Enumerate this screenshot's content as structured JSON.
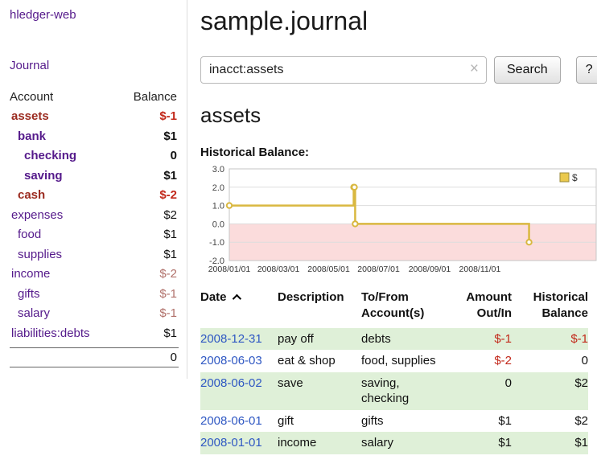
{
  "colors": {
    "link_purple": "#551a8b",
    "date_link_blue": "#2f58c3",
    "negative_red": "#c2281a",
    "muted_negative_red": "#b0706a",
    "negative_account_name": "#9b2b20",
    "row_highlight_green": "#dff0d8"
  },
  "sidebar": {
    "app_title": "hledger-web",
    "journal_label": "Journal",
    "accounts": {
      "account_header": "Account",
      "balance_header": "Balance",
      "rows": [
        {
          "name": "assets",
          "balance": "$-1",
          "indent": 0,
          "in_account": true
        },
        {
          "name": "bank",
          "balance": "$1",
          "indent": 1,
          "in_account": true
        },
        {
          "name": "checking",
          "balance": "0",
          "indent": 2,
          "in_account": true
        },
        {
          "name": "saving",
          "balance": "$1",
          "indent": 2,
          "in_account": true
        },
        {
          "name": "cash",
          "balance": "$-2",
          "indent": 1,
          "in_account": true
        },
        {
          "name": "expenses",
          "balance": "$2",
          "indent": 0,
          "in_account": false
        },
        {
          "name": "food",
          "balance": "$1",
          "indent": 1,
          "in_account": false
        },
        {
          "name": "supplies",
          "balance": "$1",
          "indent": 1,
          "in_account": false
        },
        {
          "name": "income",
          "balance": "$-2",
          "indent": 0,
          "in_account": false
        },
        {
          "name": "gifts",
          "balance": "$-1",
          "indent": 1,
          "in_account": false
        },
        {
          "name": "salary",
          "balance": "$-1",
          "indent": 1,
          "in_account": false
        },
        {
          "name": "liabilities:debts",
          "balance": "$1",
          "indent": 0,
          "in_account": false
        }
      ],
      "total": "0"
    }
  },
  "main": {
    "title": "sample.journal",
    "search": {
      "value": "inacct:assets",
      "clear_icon": "×",
      "button_label": "Search",
      "help_label": "?"
    },
    "account_heading": "assets",
    "chart_label": "Historical Balance:"
  },
  "chart_data": {
    "type": "line",
    "step": true,
    "title": "Historical Balance:",
    "ylim": [
      -2,
      3
    ],
    "yticks": [
      3.0,
      2.0,
      1.0,
      0.0,
      -1.0,
      -2.0
    ],
    "xticks": [
      {
        "x": 0.0,
        "label": "2008/01/01"
      },
      {
        "x": 0.134,
        "label": "2008/03/01"
      },
      {
        "x": 0.271,
        "label": "2008/05/01"
      },
      {
        "x": 0.407,
        "label": "2008/07/01"
      },
      {
        "x": 0.546,
        "label": "2008/09/01"
      },
      {
        "x": 0.683,
        "label": "2008/11/01"
      }
    ],
    "series": [
      {
        "name": "$",
        "color": "#d9b840",
        "points": [
          {
            "date": "2008-01-01",
            "x": 0.0,
            "y": 1
          },
          {
            "date": "2008-06-01",
            "x": 0.339,
            "y": 2
          },
          {
            "date": "2008-06-02",
            "x": 0.341,
            "y": 2
          },
          {
            "date": "2008-06-03",
            "x": 0.343,
            "y": 0
          },
          {
            "date": "2008-12-31",
            "x": 0.817,
            "y": -1
          }
        ]
      }
    ],
    "negative_region_color": "#fbdcdc",
    "grid": true,
    "legend": {
      "label": "$",
      "color": "#eac94d",
      "position": "top-right"
    }
  },
  "register": {
    "columns": [
      {
        "label": "Date",
        "align": "left",
        "sorted": "asc"
      },
      {
        "label": "Description",
        "align": "left"
      },
      {
        "label": "To/From Account(s)",
        "align": "left"
      },
      {
        "label": "Amount Out/In",
        "align": "right"
      },
      {
        "label": "Historical Balance",
        "align": "right"
      }
    ],
    "rows": [
      {
        "date": "2008-12-31",
        "description": "pay off",
        "accounts": "debts",
        "amount": "$-1",
        "balance": "$-1"
      },
      {
        "date": "2008-06-03",
        "description": "eat & shop",
        "accounts": "food, supplies",
        "amount": "$-2",
        "balance": "0"
      },
      {
        "date": "2008-06-02",
        "description": "save",
        "accounts": "saving, checking",
        "amount": "0",
        "balance": "$2"
      },
      {
        "date": "2008-06-01",
        "description": "gift",
        "accounts": "gifts",
        "amount": "$1",
        "balance": "$2"
      },
      {
        "date": "2008-01-01",
        "description": "income",
        "accounts": "salary",
        "amount": "$1",
        "balance": "$1"
      }
    ]
  }
}
